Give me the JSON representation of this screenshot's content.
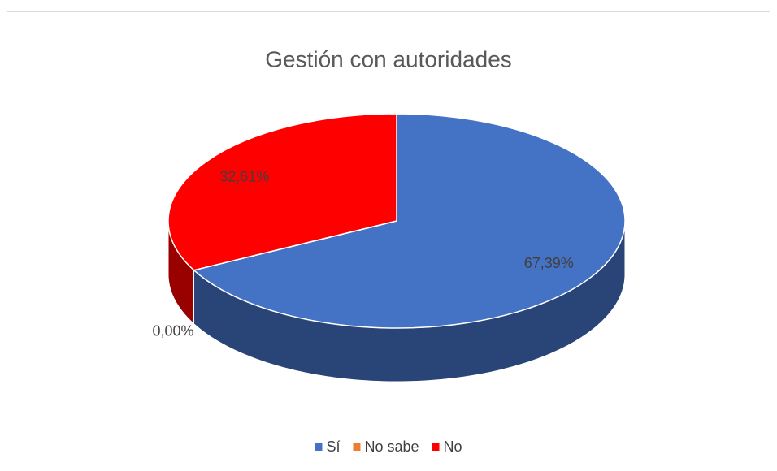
{
  "chart_data": {
    "type": "pie",
    "title": "Gestión con autoridades",
    "categories": [
      "Sí",
      "No sabe",
      "No"
    ],
    "values": [
      67.39,
      0,
      32.61
    ],
    "value_labels": [
      "67,39%",
      "0,00%",
      "32,61%"
    ],
    "colors": [
      "#4472c4",
      "#ed7d31",
      "#ff0000"
    ],
    "legend": "bottom"
  }
}
